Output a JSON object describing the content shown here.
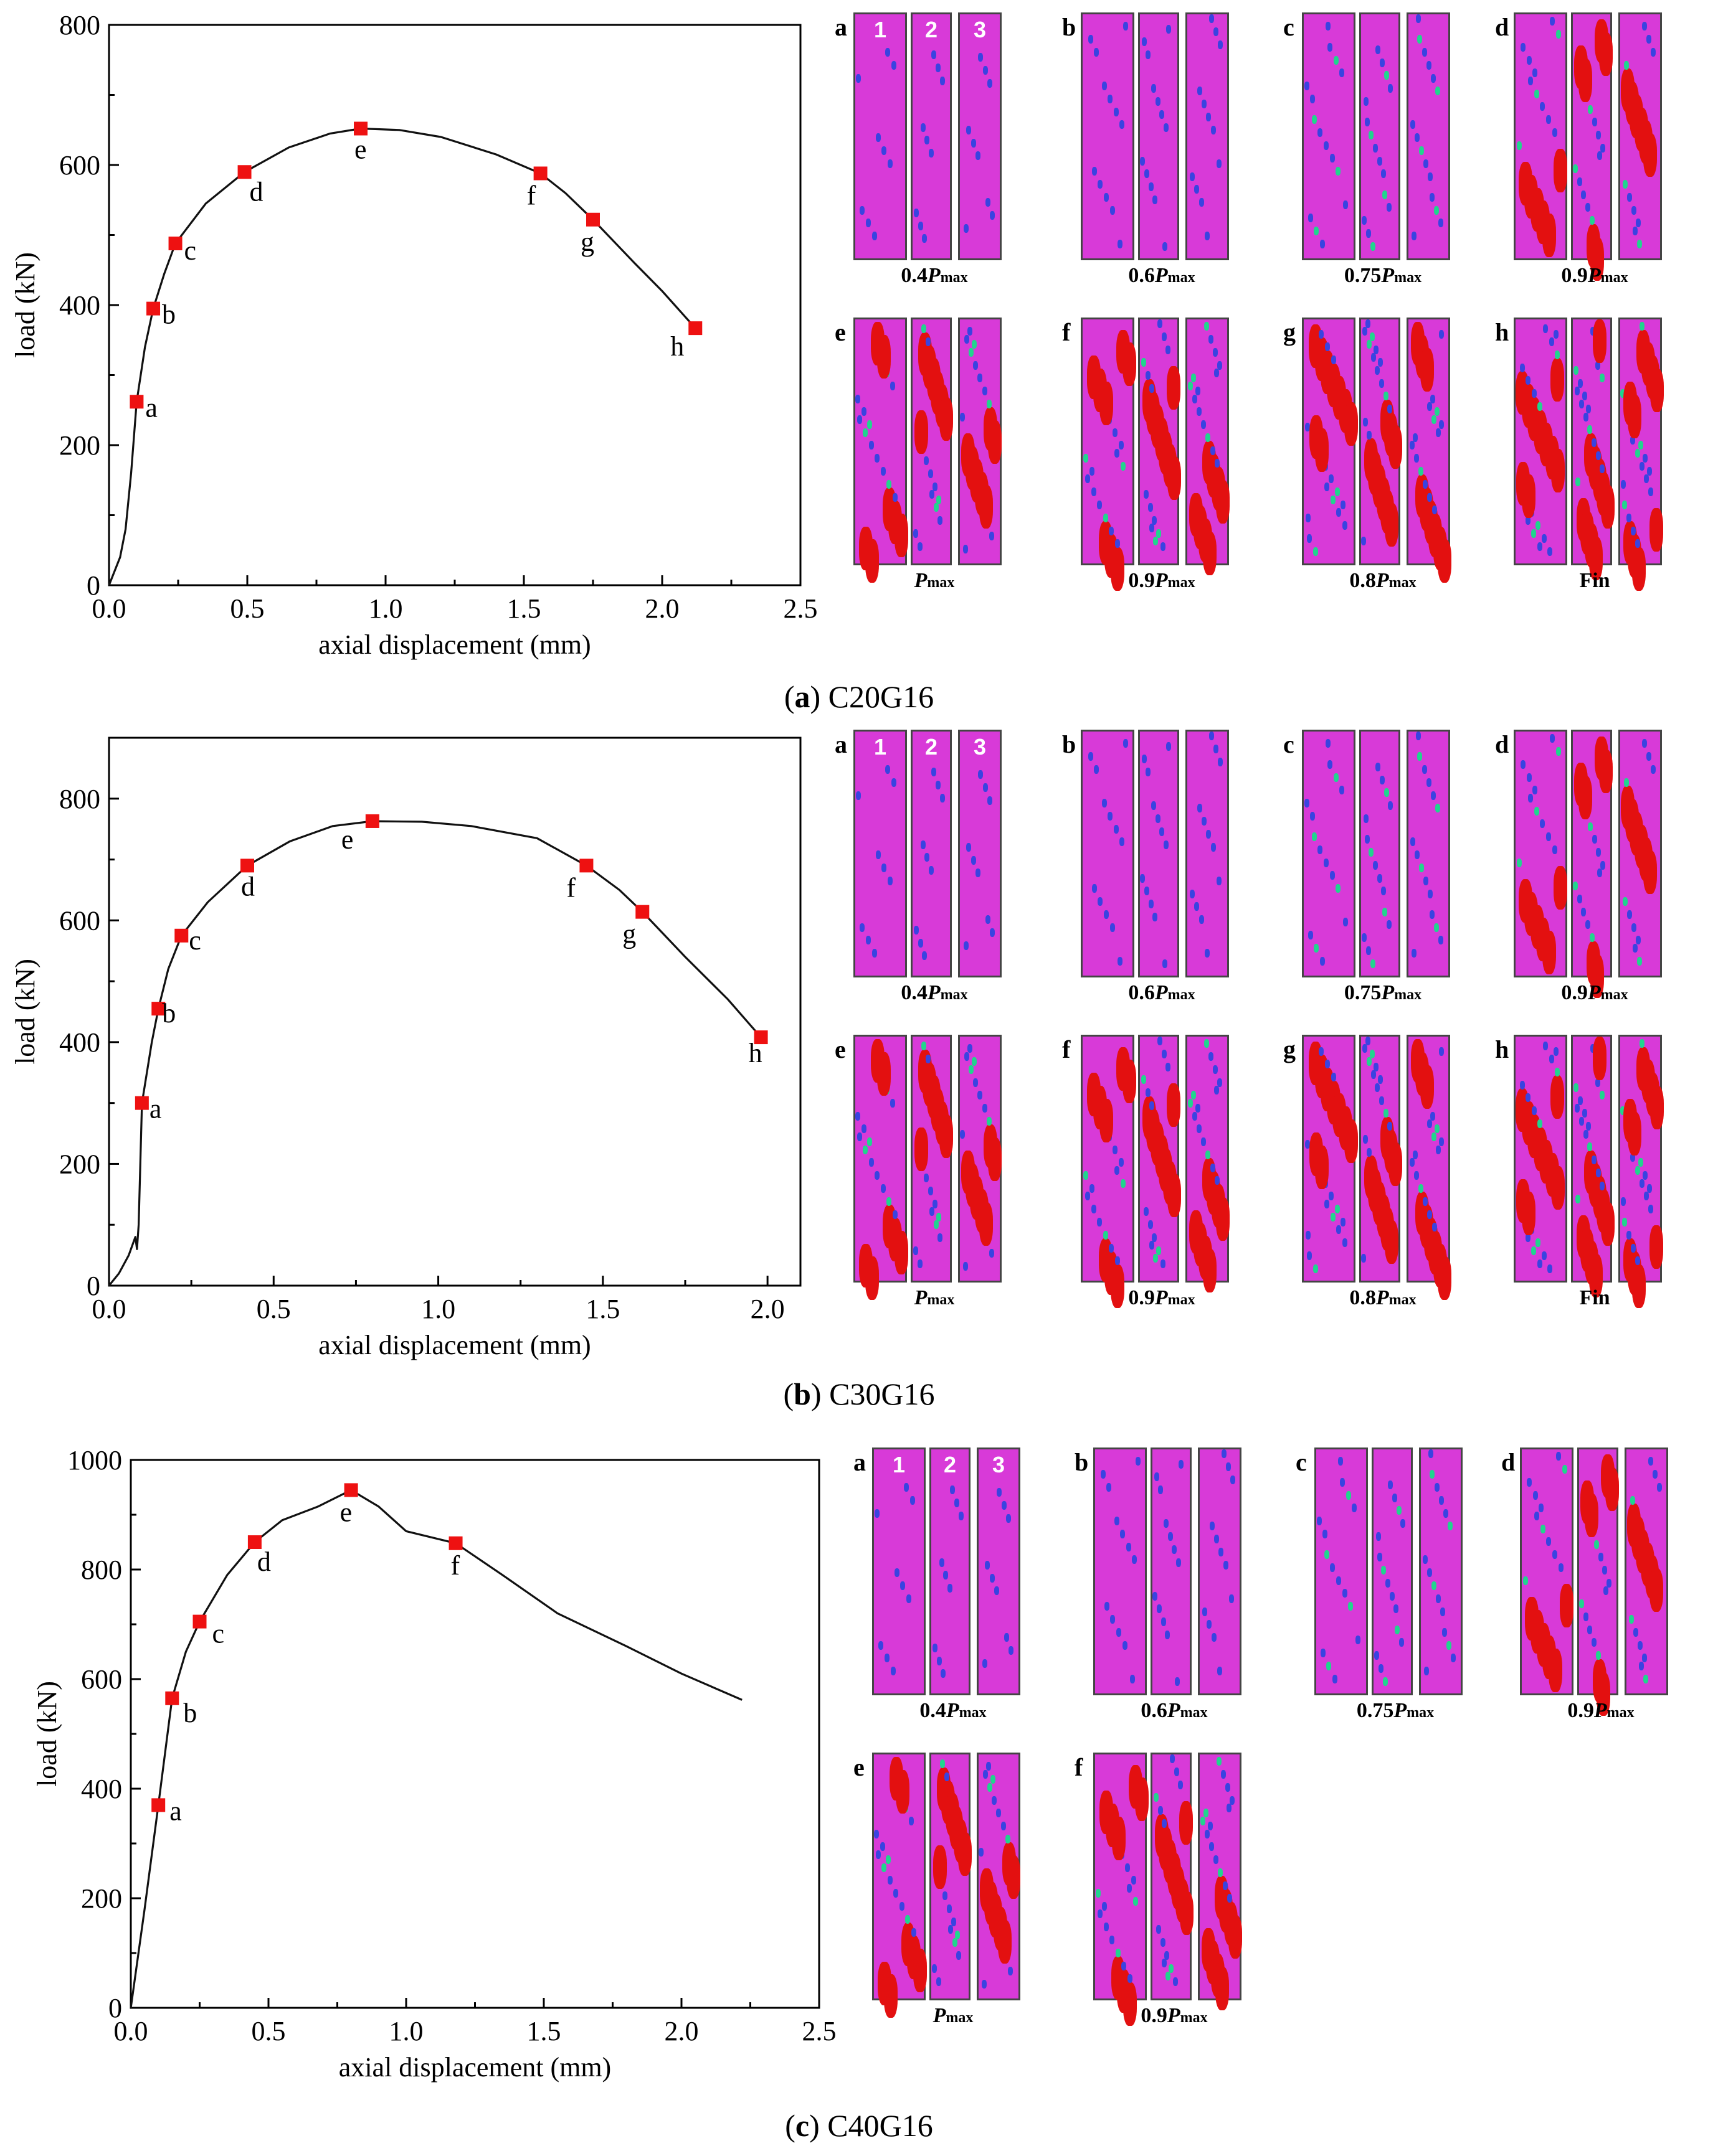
{
  "colors": {
    "marker": "#ee1111",
    "line": "#111111",
    "strip_bg": "#d83ad8",
    "crack_blue": "#3a43e0",
    "crack_green": "#21d48e",
    "crack_red": "#e31010"
  },
  "chart_data": [
    {
      "type": "line",
      "caption_letter": "a",
      "caption_text": "C20G16",
      "xlabel": "axial displacement (mm)",
      "ylabel": "load (kN)",
      "xlim": [
        0,
        2.5
      ],
      "ylim": [
        0,
        800
      ],
      "xticks": [
        "0.0",
        "0.5",
        "1.0",
        "1.5",
        "2.0",
        "2.5"
      ],
      "yticks": [
        "0",
        "200",
        "400",
        "600",
        "800"
      ],
      "curve": [
        [
          0,
          0
        ],
        [
          0.02,
          20
        ],
        [
          0.04,
          40
        ],
        [
          0.06,
          80
        ],
        [
          0.08,
          160
        ],
        [
          0.1,
          262
        ],
        [
          0.13,
          340
        ],
        [
          0.16,
          395
        ],
        [
          0.2,
          445
        ],
        [
          0.24,
          488
        ],
        [
          0.35,
          545
        ],
        [
          0.49,
          590
        ],
        [
          0.65,
          625
        ],
        [
          0.8,
          645
        ],
        [
          0.91,
          652
        ],
        [
          1.05,
          650
        ],
        [
          1.2,
          640
        ],
        [
          1.4,
          615
        ],
        [
          1.56,
          588
        ],
        [
          1.65,
          560
        ],
        [
          1.75,
          522
        ],
        [
          1.9,
          460
        ],
        [
          2.0,
          420
        ],
        [
          2.12,
          367
        ]
      ],
      "points": [
        {
          "label": "a",
          "x": 0.1,
          "y": 262
        },
        {
          "label": "b",
          "x": 0.16,
          "y": 395
        },
        {
          "label": "c",
          "x": 0.24,
          "y": 488
        },
        {
          "label": "d",
          "x": 0.49,
          "y": 590
        },
        {
          "label": "e",
          "x": 0.91,
          "y": 652
        },
        {
          "label": "f",
          "x": 1.56,
          "y": 588
        },
        {
          "label": "g",
          "x": 1.75,
          "y": 522
        },
        {
          "label": "h",
          "x": 2.12,
          "y": 367
        }
      ]
    },
    {
      "type": "line",
      "caption_letter": "b",
      "caption_text": "C30G16",
      "xlabel": "axial displacement (mm)",
      "ylabel": "load (kN)",
      "xlim": [
        0,
        2.1
      ],
      "ylim": [
        0,
        900
      ],
      "xticks": [
        "0.0",
        "0.5",
        "1.0",
        "1.5",
        "2.0"
      ],
      "yticks": [
        "0",
        "200",
        "400",
        "600",
        "800"
      ],
      "curve": [
        [
          0,
          0
        ],
        [
          0.03,
          20
        ],
        [
          0.06,
          50
        ],
        [
          0.08,
          80
        ],
        [
          0.085,
          60
        ],
        [
          0.09,
          100
        ],
        [
          0.1,
          300
        ],
        [
          0.13,
          400
        ],
        [
          0.15,
          455
        ],
        [
          0.18,
          520
        ],
        [
          0.22,
          575
        ],
        [
          0.3,
          630
        ],
        [
          0.42,
          690
        ],
        [
          0.55,
          730
        ],
        [
          0.68,
          755
        ],
        [
          0.8,
          763
        ],
        [
          0.95,
          762
        ],
        [
          1.1,
          755
        ],
        [
          1.3,
          735
        ],
        [
          1.45,
          690
        ],
        [
          1.55,
          650
        ],
        [
          1.62,
          614
        ],
        [
          1.75,
          540
        ],
        [
          1.88,
          470
        ],
        [
          1.98,
          408
        ]
      ],
      "points": [
        {
          "label": "a",
          "x": 0.1,
          "y": 300
        },
        {
          "label": "b",
          "x": 0.15,
          "y": 455
        },
        {
          "label": "c",
          "x": 0.22,
          "y": 575
        },
        {
          "label": "d",
          "x": 0.42,
          "y": 690
        },
        {
          "label": "e",
          "x": 0.8,
          "y": 763
        },
        {
          "label": "f",
          "x": 1.45,
          "y": 690
        },
        {
          "label": "g",
          "x": 1.62,
          "y": 614
        },
        {
          "label": "h",
          "x": 1.98,
          "y": 408
        }
      ]
    },
    {
      "type": "line",
      "caption_letter": "c",
      "caption_text": "C40G16",
      "xlabel": "axial displacement (mm)",
      "ylabel": "load (kN)",
      "xlim": [
        0,
        2.5
      ],
      "ylim": [
        0,
        1000
      ],
      "xticks": [
        "0.0",
        "0.5",
        "1.0",
        "1.5",
        "2.0",
        "2.5"
      ],
      "yticks": [
        "0",
        "200",
        "400",
        "600",
        "800",
        "1000"
      ],
      "curve": [
        [
          0,
          0
        ],
        [
          0.05,
          180
        ],
        [
          0.1,
          370
        ],
        [
          0.15,
          565
        ],
        [
          0.2,
          650
        ],
        [
          0.25,
          705
        ],
        [
          0.35,
          790
        ],
        [
          0.45,
          850
        ],
        [
          0.55,
          890
        ],
        [
          0.68,
          915
        ],
        [
          0.8,
          945
        ],
        [
          0.9,
          915
        ],
        [
          1.0,
          870
        ],
        [
          1.18,
          848
        ],
        [
          1.35,
          790
        ],
        [
          1.55,
          720
        ],
        [
          1.8,
          660
        ],
        [
          2.0,
          610
        ],
        [
          2.22,
          562
        ]
      ],
      "points": [
        {
          "label": "a",
          "x": 0.1,
          "y": 370
        },
        {
          "label": "b",
          "x": 0.15,
          "y": 565
        },
        {
          "label": "c",
          "x": 0.25,
          "y": 705
        },
        {
          "label": "d",
          "x": 0.45,
          "y": 850
        },
        {
          "label": "e",
          "x": 0.8,
          "y": 945
        },
        {
          "label": "f",
          "x": 1.18,
          "y": 848
        }
      ]
    }
  ],
  "dic": {
    "strip_numbers": [
      "1",
      "2",
      "3"
    ],
    "panel_a": [
      {
        "letter": "a",
        "load_prefix": "0.4",
        "load_symbol": "P",
        "load_sub": "max",
        "load_text": ""
      },
      {
        "letter": "b",
        "load_prefix": "0.6",
        "load_symbol": "P",
        "load_sub": "max",
        "load_text": ""
      },
      {
        "letter": "c",
        "load_prefix": "0.75",
        "load_symbol": "P",
        "load_sub": "max",
        "load_text": ""
      },
      {
        "letter": "d",
        "load_prefix": "0.9",
        "load_symbol": "P",
        "load_sub": "max",
        "load_text": ""
      },
      {
        "letter": "e",
        "load_prefix": "",
        "load_symbol": "P",
        "load_sub": "max",
        "load_text": ""
      },
      {
        "letter": "f",
        "load_prefix": "0.9",
        "load_symbol": "P",
        "load_sub": "max",
        "load_text": ""
      },
      {
        "letter": "g",
        "load_prefix": "0.8",
        "load_symbol": "P",
        "load_sub": "max",
        "load_text": ""
      },
      {
        "letter": "h",
        "load_prefix": "",
        "load_symbol": "",
        "load_sub": "",
        "load_text": "Fin"
      }
    ],
    "panel_b": [
      {
        "letter": "a",
        "load_prefix": "0.4",
        "load_symbol": "P",
        "load_sub": "max",
        "load_text": ""
      },
      {
        "letter": "b",
        "load_prefix": "0.6",
        "load_symbol": "P",
        "load_sub": "max",
        "load_text": ""
      },
      {
        "letter": "c",
        "load_prefix": "0.75",
        "load_symbol": "P",
        "load_sub": "max",
        "load_text": ""
      },
      {
        "letter": "d",
        "load_prefix": "0.9",
        "load_symbol": "P",
        "load_sub": "max",
        "load_text": ""
      },
      {
        "letter": "e",
        "load_prefix": "",
        "load_symbol": "P",
        "load_sub": "max",
        "load_text": ""
      },
      {
        "letter": "f",
        "load_prefix": "0.9",
        "load_symbol": "P",
        "load_sub": "max",
        "load_text": ""
      },
      {
        "letter": "g",
        "load_prefix": "0.8",
        "load_symbol": "P",
        "load_sub": "max",
        "load_text": ""
      },
      {
        "letter": "h",
        "load_prefix": "",
        "load_symbol": "",
        "load_sub": "",
        "load_text": "Fin"
      }
    ],
    "panel_c": [
      {
        "letter": "a",
        "load_prefix": "0.4",
        "load_symbol": "P",
        "load_sub": "max",
        "load_text": ""
      },
      {
        "letter": "b",
        "load_prefix": "0.6",
        "load_symbol": "P",
        "load_sub": "max",
        "load_text": ""
      },
      {
        "letter": "c",
        "load_prefix": "0.75",
        "load_symbol": "P",
        "load_sub": "max",
        "load_text": ""
      },
      {
        "letter": "d",
        "load_prefix": "0.9",
        "load_symbol": "P",
        "load_sub": "max",
        "load_text": ""
      },
      {
        "letter": "e",
        "load_prefix": "",
        "load_symbol": "P",
        "load_sub": "max",
        "load_text": ""
      },
      {
        "letter": "f",
        "load_prefix": "0.9",
        "load_symbol": "P",
        "load_sub": "max",
        "load_text": ""
      }
    ]
  }
}
